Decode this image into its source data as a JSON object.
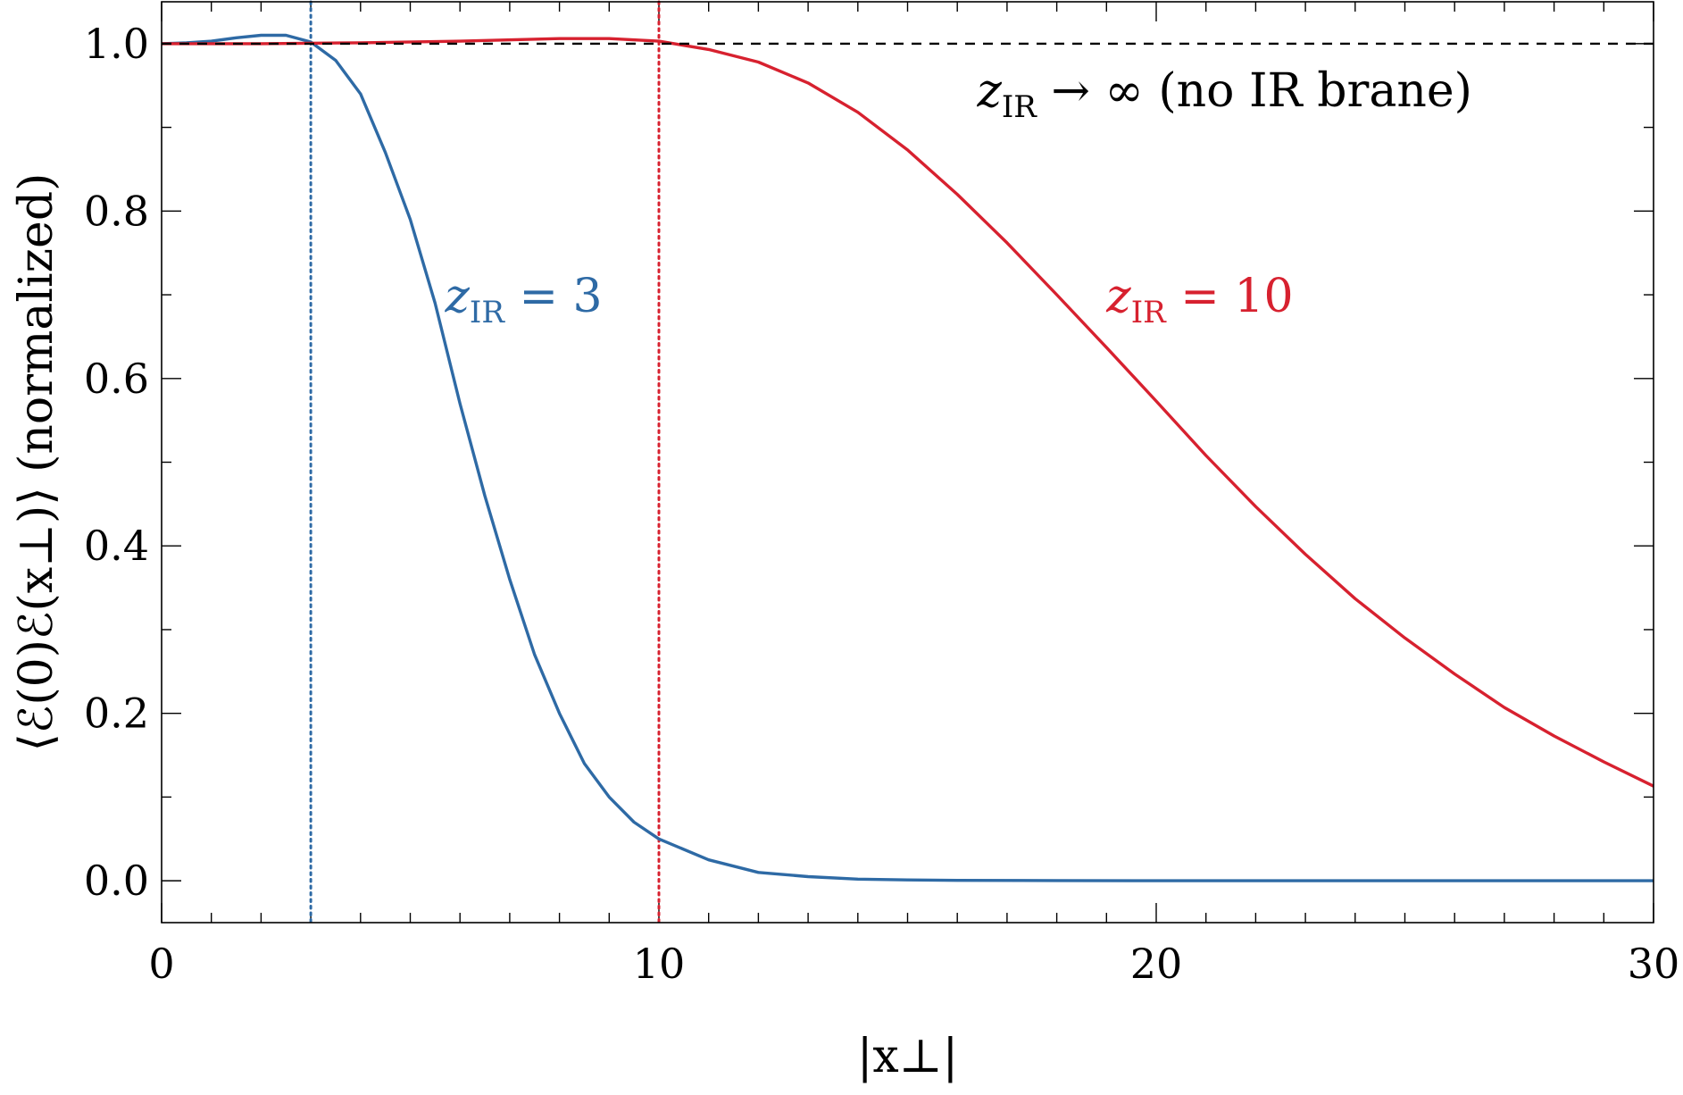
{
  "chart_data": {
    "type": "line",
    "xlabel": "|x⊥|",
    "ylabel": "⟨ℰ(0)ℰ(x⊥)⟩ (normalized)",
    "xlim": [
      0,
      30
    ],
    "ylim": [
      -0.05,
      1.05
    ],
    "xticks": [
      0,
      10,
      20,
      30
    ],
    "xtick_labels": [
      "0",
      "10",
      "20",
      "30"
    ],
    "yticks": [
      0.0,
      0.2,
      0.4,
      0.6,
      0.8,
      1.0
    ],
    "ytick_labels": [
      "0.0",
      "0.2",
      "0.4",
      "0.6",
      "0.8",
      "1.0"
    ],
    "x_minor_step": 1,
    "y_minor_step": 0.1,
    "grid": false,
    "colors": {
      "blue": "#2e6aa5",
      "red": "#d7212f",
      "reference": "#000000"
    },
    "series": [
      {
        "name": "z_IR = 3",
        "color": "#2e6aa5",
        "x": [
          0,
          0.5,
          1,
          1.5,
          2,
          2.5,
          3,
          3.5,
          4,
          4.5,
          5,
          5.5,
          6,
          6.5,
          7,
          7.5,
          8,
          8.5,
          9,
          9.5,
          10,
          11,
          12,
          13,
          14,
          15,
          16,
          18,
          20,
          25,
          30
        ],
        "y": [
          1.0,
          1.001,
          1.003,
          1.007,
          1.01,
          1.01,
          1.002,
          0.98,
          0.94,
          0.87,
          0.79,
          0.69,
          0.57,
          0.46,
          0.36,
          0.27,
          0.2,
          0.14,
          0.1,
          0.07,
          0.05,
          0.025,
          0.01,
          0.005,
          0.002,
          0.001,
          0.0005,
          0.0002,
          0.0,
          0.0,
          0.0
        ]
      },
      {
        "name": "z_IR = 10",
        "color": "#d7212f",
        "x": [
          0,
          2,
          4,
          6,
          8,
          9,
          10,
          11,
          12,
          13,
          14,
          15,
          16,
          17,
          18,
          19,
          20,
          21,
          22,
          23,
          24,
          25,
          26,
          27,
          28,
          29,
          30
        ],
        "y": [
          1.0,
          1.0,
          1.001,
          1.003,
          1.006,
          1.006,
          1.003,
          0.993,
          0.978,
          0.953,
          0.918,
          0.873,
          0.82,
          0.762,
          0.7,
          0.637,
          0.573,
          0.508,
          0.447,
          0.39,
          0.337,
          0.29,
          0.247,
          0.207,
          0.173,
          0.142,
          0.113
        ]
      },
      {
        "name": "reference",
        "color": "#000000",
        "style": "dashed",
        "x": [
          0,
          30
        ],
        "y": [
          1.0,
          1.0
        ]
      }
    ],
    "vlines": [
      {
        "x": 3,
        "color": "#2e6aa5",
        "style": "dotted"
      },
      {
        "x": 10,
        "color": "#d7212f",
        "style": "dotted"
      }
    ],
    "annotations": [
      {
        "var": "z",
        "sub": "IR",
        "rest": "= 3",
        "color": "#2e6aa5",
        "x": 5.7,
        "y": 0.68
      },
      {
        "var": "z",
        "sub": "IR",
        "rest": "= 10",
        "color": "#d7212f",
        "x": 19.0,
        "y": 0.68
      },
      {
        "var": "z",
        "sub": "IR",
        "rest": "→ ∞ (no IR brane)",
        "color": "#000000",
        "x": 16.4,
        "y": 0.925
      }
    ]
  }
}
